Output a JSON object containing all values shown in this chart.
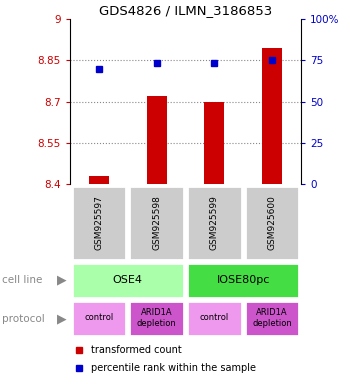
{
  "title": "GDS4826 / ILMN_3186853",
  "samples": [
    "GSM925597",
    "GSM925598",
    "GSM925599",
    "GSM925600"
  ],
  "bar_values": [
    8.43,
    8.72,
    8.7,
    8.895
  ],
  "percentile_values": [
    70,
    73.5,
    73.5,
    75
  ],
  "ylim_left": [
    8.4,
    9.0
  ],
  "ylim_right": [
    0,
    100
  ],
  "yticks_left": [
    8.4,
    8.55,
    8.7,
    8.85,
    9.0
  ],
  "ytick_labels_left": [
    "8.4",
    "8.55",
    "8.7",
    "8.85",
    "9"
  ],
  "yticks_right": [
    0,
    25,
    50,
    75,
    100
  ],
  "ytick_labels_right": [
    "0",
    "25",
    "50",
    "75",
    "100%"
  ],
  "bar_color": "#cc0000",
  "dot_color": "#0000cc",
  "bar_width": 0.35,
  "cell_line_labels": [
    "OSE4",
    "IOSE80pc"
  ],
  "cell_line_colors": [
    "#aaffaa",
    "#44dd44"
  ],
  "cell_line_spans": [
    [
      0,
      2
    ],
    [
      2,
      4
    ]
  ],
  "protocol_labels": [
    "control",
    "ARID1A\ndepletion",
    "control",
    "ARID1A\ndepletion"
  ],
  "protocol_colors": [
    "#ee99ee",
    "#cc55cc",
    "#ee99ee",
    "#cc55cc"
  ],
  "grid_color": "#888888",
  "background_color": "#ffffff",
  "label_cell_line": "cell line",
  "label_protocol": "protocol",
  "legend_bar_label": "transformed count",
  "legend_dot_label": "percentile rank within the sample"
}
